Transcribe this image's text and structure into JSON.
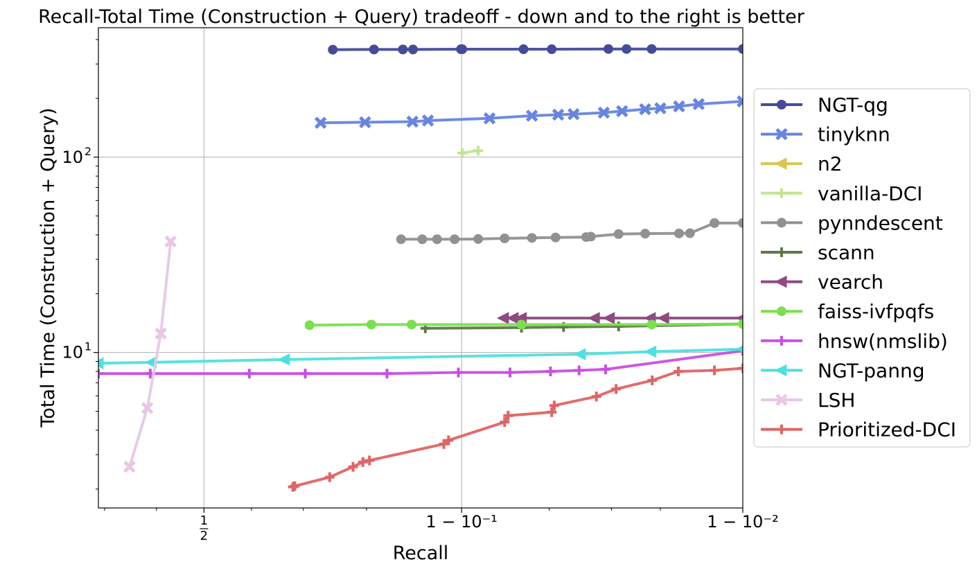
{
  "chart_data": {
    "type": "line",
    "title": "Recall-Total Time (Construction + Query) tradeoff - down and to the right is better",
    "xlabel": "Recall",
    "ylabel": "Total Time (Construction + Query)",
    "xscale": "logit",
    "yscale": "log",
    "xlim": [
      0.289,
      0.99
    ],
    "ylim": [
      1.6,
      460
    ],
    "xticks": [
      {
        "value": 0.5,
        "label": "1/2"
      },
      {
        "value": 0.9,
        "label": "1 − 10⁻¹"
      },
      {
        "value": 0.99,
        "label": "1 − 10⁻²"
      }
    ],
    "yticks": [
      {
        "value": 10,
        "label": "10¹"
      },
      {
        "value": 100,
        "label": "10²"
      }
    ],
    "grid": true,
    "legend_position": "right",
    "series": [
      {
        "name": "NGT-qg",
        "color": "#444c99",
        "marker": "circle",
        "x": [
          0.75,
          0.81,
          0.845,
          0.856,
          0.8995,
          0.9005,
          0.9385,
          0.951,
          0.9692,
          0.9735,
          0.9785,
          0.99
        ],
        "y": [
          355,
          356,
          356,
          356,
          357,
          357,
          357,
          357,
          358,
          358,
          358,
          358
        ]
      },
      {
        "name": "tinyknn",
        "color": "#6685e0",
        "marker": "x",
        "x": [
          0.73,
          0.798,
          0.8555,
          0.871,
          0.9195,
          0.9425,
          0.9535,
          0.959,
          0.968,
          0.9725,
          0.9773,
          0.98,
          0.9829,
          0.9855,
          0.99
        ],
        "y": [
          150,
          151,
          152,
          154,
          158,
          163,
          165,
          166,
          169,
          172,
          176,
          178,
          182,
          187,
          193
        ]
      },
      {
        "name": "n2",
        "color": "#dcc64e",
        "marker": "triangle-left",
        "x": [],
        "y": []
      },
      {
        "name": "vanilla-DCI",
        "color": "#c0e692",
        "marker": "plus",
        "x": [
          0.9005,
          0.912
        ],
        "y": [
          105,
          108
        ]
      },
      {
        "name": "pynndescent",
        "color": "#919191",
        "marker": "circle",
        "x": [
          0.843,
          0.8655,
          0.8795,
          0.8945,
          0.912,
          0.9285,
          0.9425,
          0.9525,
          0.963,
          0.9644,
          0.9717,
          0.9773,
          0.9829,
          0.9844,
          0.9873,
          0.99
        ],
        "y": [
          38,
          38,
          38,
          38,
          38.1,
          38.4,
          38.6,
          38.8,
          39,
          39.2,
          40.4,
          40.6,
          40.7,
          40.8,
          46,
          46
        ]
      },
      {
        "name": "scann",
        "color": "#5e7a45",
        "marker": "plus",
        "x": [
          0.8685,
          0.9375,
          0.9555,
          0.9717,
          0.99
        ],
        "y": [
          13.3,
          13.4,
          13.5,
          13.6,
          14
        ]
      },
      {
        "name": "vearch",
        "color": "#8f4a82",
        "marker": "triangle-left",
        "x": [
          0.928,
          0.9333,
          0.9375,
          0.9655,
          0.9695,
          0.9783,
          0.9806,
          0.99
        ],
        "y": [
          15,
          15,
          15,
          15,
          15,
          15,
          15,
          15
        ]
      },
      {
        "name": "faiss-ivfpqfs",
        "color": "#7ae04d",
        "marker": "circle",
        "x": [
          0.711,
          0.8065,
          0.8545,
          0.9375,
          0.9785,
          0.99
        ],
        "y": [
          13.8,
          13.9,
          13.9,
          13.9,
          13.9,
          14
        ]
      },
      {
        "name": "hnsw(nmslib)",
        "color": "#c84fe0",
        "marker": "plus",
        "x": [
          0.289,
          0.3875,
          0.5955,
          0.7035,
          0.8265,
          0.8975,
          0.9315,
          0.9505,
          0.9608,
          0.9685,
          0.99
        ],
        "y": [
          7.8,
          7.8,
          7.8,
          7.8,
          7.8,
          7.9,
          7.9,
          8.0,
          8.1,
          8.2,
          10.2
        ]
      },
      {
        "name": "NGT-panng",
        "color": "#4ee0e0",
        "marker": "triangle-left",
        "x": [
          0.289,
          0.39,
          0.6655,
          0.9613,
          0.9784,
          0.99
        ],
        "y": [
          8.8,
          8.9,
          9.2,
          9.8,
          10.1,
          10.4
        ]
      },
      {
        "name": "LSH",
        "color": "#e6c8e6",
        "marker": "x",
        "x": [
          0.3465,
          0.3815,
          0.409,
          0.4295
        ],
        "y": [
          2.6,
          5.2,
          12.5,
          37
        ]
      },
      {
        "name": "Prioritized-DCI",
        "color": "#e06464",
        "marker": "plus",
        "x": [
          0.681,
          0.6845,
          0.745,
          0.781,
          0.795,
          0.804,
          0.8855,
          0.8895,
          0.9285,
          0.9305,
          0.951,
          0.952,
          0.966,
          0.9711,
          0.9786,
          0.9828,
          0.9873,
          0.99
        ],
        "y": [
          2.05,
          2.07,
          2.3,
          2.6,
          2.75,
          2.8,
          3.4,
          3.55,
          4.4,
          4.75,
          4.95,
          5.35,
          5.95,
          6.5,
          7.2,
          8.0,
          8.1,
          8.3
        ]
      }
    ]
  }
}
